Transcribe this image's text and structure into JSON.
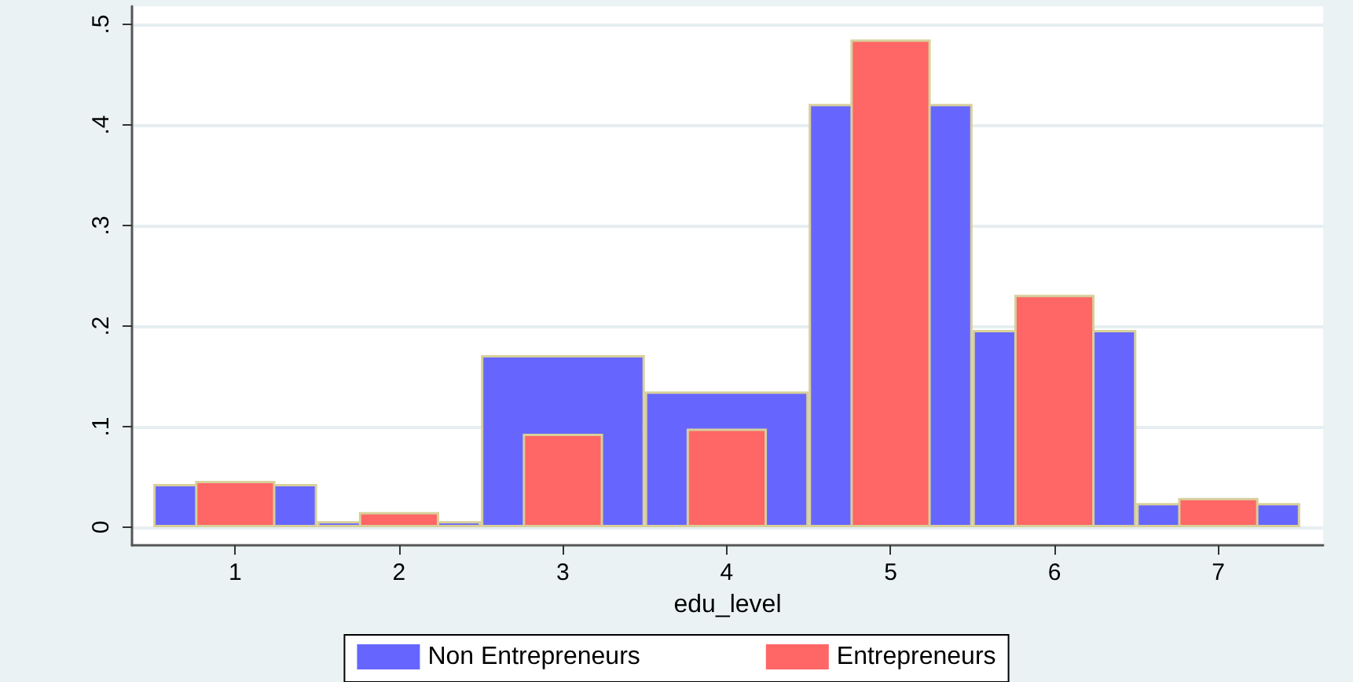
{
  "chart_data": {
    "type": "bar",
    "xlabel": "edu_level",
    "x": [
      1,
      2,
      3,
      4,
      5,
      6,
      7
    ],
    "series": [
      {
        "name": "Non Entrepreneurs",
        "color": "#6666ff",
        "values": [
          0.043,
          0.006,
          0.171,
          0.135,
          0.421,
          0.196,
          0.024
        ]
      },
      {
        "name": "Entrepreneurs",
        "color": "#ff6666",
        "values": [
          0.046,
          0.015,
          0.093,
          0.098,
          0.485,
          0.231,
          0.029
        ]
      }
    ],
    "xlim": [
      0.37,
      7.64
    ],
    "xticks": [
      1,
      2,
      3,
      4,
      5,
      6,
      7
    ],
    "ylim": [
      -0.018,
      0.518
    ],
    "yticks": [
      0,
      {
        "value": 0.1,
        "label": ".1"
      },
      {
        "value": 0.2,
        "label": ".2"
      },
      {
        "value": 0.3,
        "label": ".3"
      },
      {
        "value": 0.4,
        "label": ".4"
      },
      {
        "value": 0.5,
        "label": ".5"
      }
    ],
    "grid": "y",
    "legend": "bottom"
  }
}
